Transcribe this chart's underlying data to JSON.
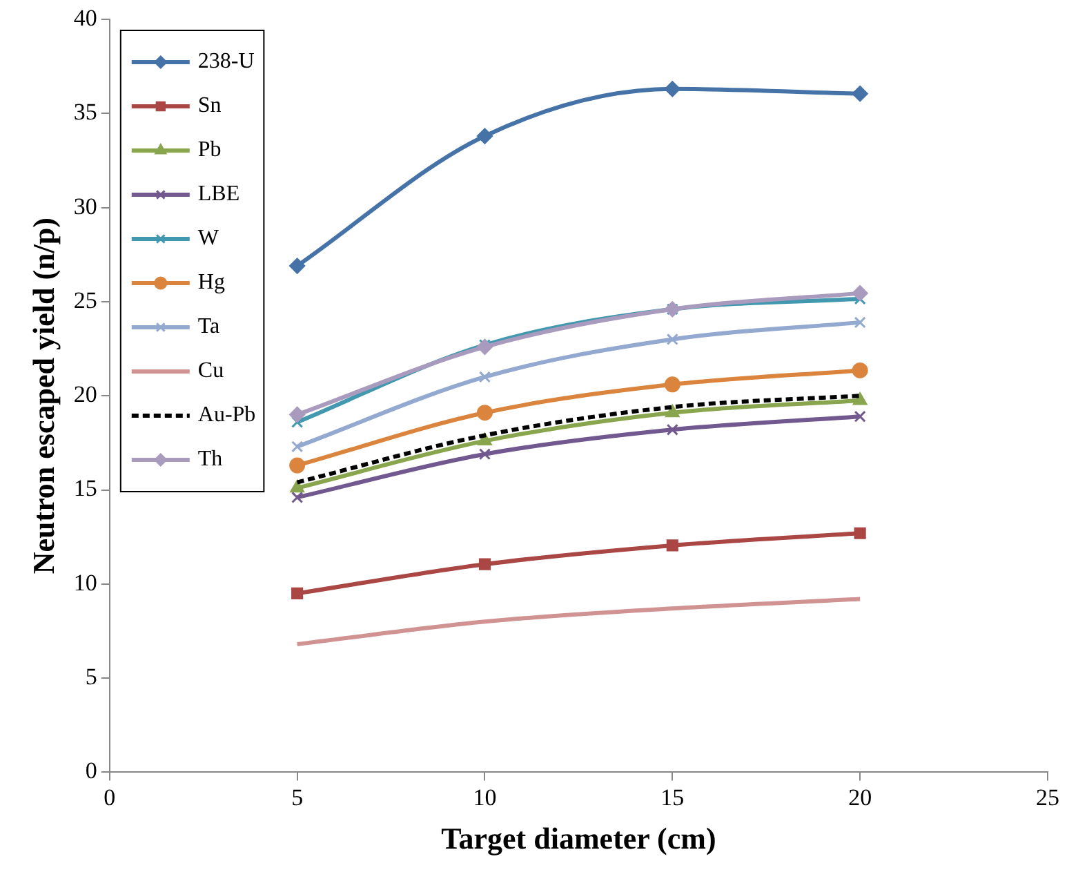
{
  "chart_data": {
    "type": "line",
    "xlabel": "Target diameter (cm)",
    "ylabel": "Neutron escaped yield (n/p)",
    "x": [
      5,
      10,
      15,
      20
    ],
    "xlim": [
      0,
      25
    ],
    "xticks": [
      0,
      5,
      10,
      15,
      20,
      25
    ],
    "ylim": [
      0,
      40
    ],
    "yticks": [
      0,
      5,
      10,
      15,
      20,
      25,
      30,
      35,
      40
    ],
    "grid": false,
    "legend": "top left",
    "series": [
      {
        "name": "238-U",
        "color": "#4572a7",
        "marker": "diamond",
        "values": [
          26.9,
          33.8,
          36.3,
          36.05
        ]
      },
      {
        "name": "Sn",
        "color": "#aa4643",
        "marker": "square",
        "values": [
          9.5,
          11.05,
          12.05,
          12.7
        ]
      },
      {
        "name": "Pb",
        "color": "#89a54e",
        "marker": "triangle",
        "values": [
          15.1,
          17.6,
          19.1,
          19.75
        ]
      },
      {
        "name": "LBE",
        "color": "#71588f",
        "marker": "cross",
        "values": [
          14.6,
          16.9,
          18.2,
          18.9
        ]
      },
      {
        "name": "W",
        "color": "#4198af",
        "marker": "cross",
        "values": [
          18.6,
          22.7,
          24.6,
          25.15
        ]
      },
      {
        "name": "Hg",
        "color": "#db843d",
        "marker": "circle",
        "values": [
          16.3,
          19.1,
          20.6,
          21.35
        ]
      },
      {
        "name": "Ta",
        "color": "#93a9cf",
        "marker": "cross",
        "values": [
          17.3,
          21.0,
          23.0,
          23.9
        ]
      },
      {
        "name": "Cu",
        "color": "#d19392",
        "marker": "none",
        "values": [
          6.8,
          8.0,
          8.7,
          9.2
        ]
      },
      {
        "name": "Au-Pb",
        "color": "#000000",
        "marker": "none",
        "line_style": "dashed",
        "values": [
          15.4,
          17.9,
          19.4,
          20.0
        ]
      },
      {
        "name": "Th",
        "color": "#a99bbd",
        "marker": "diamond",
        "values": [
          19.0,
          22.6,
          24.6,
          25.45
        ]
      }
    ]
  }
}
